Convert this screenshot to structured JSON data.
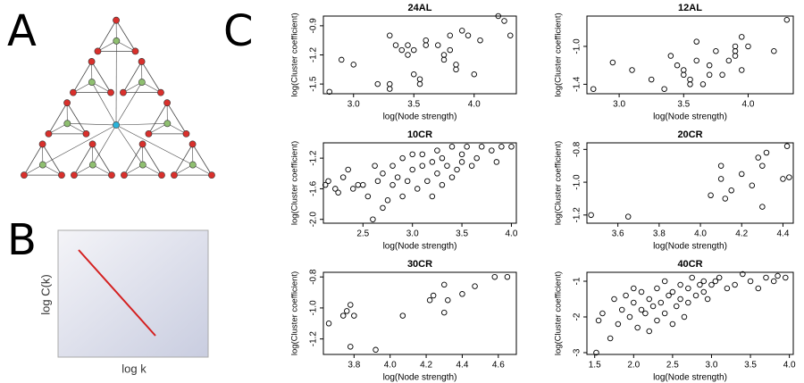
{
  "labels": [
    "A",
    "B",
    "C"
  ],
  "panel_b": {
    "xlabel": "log k",
    "ylabel": "log C(k)"
  },
  "chart_data": [
    {
      "type": "scatter",
      "title": "24AL",
      "xlabel": "log(Node strength)",
      "ylabel": "log(Cluster coefficient)",
      "x": [
        2.8,
        2.9,
        3.0,
        3.2,
        3.3,
        3.3,
        3.3,
        3.35,
        3.4,
        3.45,
        3.45,
        3.5,
        3.5,
        3.55,
        3.55,
        3.6,
        3.6,
        3.7,
        3.75,
        3.75,
        3.8,
        3.8,
        3.85,
        3.85,
        3.9,
        3.95,
        4.0,
        4.05,
        4.2,
        4.25,
        4.3
      ],
      "values": [
        -1.58,
        -1.25,
        -1.3,
        -1.5,
        -1.55,
        -1.5,
        -1.0,
        -1.1,
        -1.15,
        -1.2,
        -1.1,
        -1.15,
        -1.4,
        -1.45,
        -1.5,
        -1.05,
        -1.1,
        -1.1,
        -1.2,
        -1.25,
        -1.15,
        -1.0,
        -1.3,
        -1.35,
        -0.95,
        -1.0,
        -1.4,
        -1.05,
        -0.8,
        -0.85,
        -1.0
      ],
      "xlim": [
        2.75,
        4.35
      ],
      "ylim": [
        -1.6,
        -0.8
      ],
      "xticks": [
        {
          "value": 3,
          "label": "3.0"
        },
        3.5,
        {
          "value": 4,
          "label": "4.0"
        }
      ],
      "yticks": [
        -1.5,
        -1.2,
        -0.9
      ]
    },
    {
      "type": "scatter",
      "title": "12AL",
      "xlabel": "log(Node strength)",
      "ylabel": "log(Cluster coefficient)",
      "x": [
        2.8,
        2.95,
        3.1,
        3.25,
        3.35,
        3.4,
        3.45,
        3.5,
        3.5,
        3.55,
        3.55,
        3.6,
        3.6,
        3.65,
        3.7,
        3.7,
        3.75,
        3.8,
        3.85,
        3.9,
        3.9,
        3.9,
        3.95,
        3.95,
        4.0,
        4.2,
        4.3
      ],
      "values": [
        -1.45,
        -1.17,
        -1.25,
        -1.35,
        -1.45,
        -1.1,
        -1.2,
        -1.25,
        -1.3,
        -1.35,
        -1.4,
        -0.95,
        -1.15,
        -1.4,
        -1.2,
        -1.3,
        -1.05,
        -1.3,
        -1.15,
        -1.05,
        -1.0,
        -1.1,
        -0.9,
        -1.25,
        -1.0,
        -1.05,
        -0.72
      ],
      "xlim": [
        2.75,
        4.35
      ],
      "ylim": [
        -1.5,
        -0.68
      ],
      "xticks": [
        {
          "value": 3,
          "label": "3.0"
        },
        3.5,
        {
          "value": 4,
          "label": "4.0"
        }
      ],
      "yticks": [
        -1.4,
        {
          "value": -1,
          "label": "-1.0"
        }
      ]
    },
    {
      "type": "scatter",
      "title": "10CR",
      "xlabel": "log(Node strength)",
      "ylabel": "log(Cluster coefficient)",
      "x": [
        2.12,
        2.15,
        2.22,
        2.25,
        2.3,
        2.35,
        2.4,
        2.45,
        2.5,
        2.55,
        2.6,
        2.62,
        2.65,
        2.7,
        2.7,
        2.75,
        2.8,
        2.8,
        2.85,
        2.9,
        2.9,
        2.95,
        3.0,
        3.0,
        3.05,
        3.1,
        3.1,
        3.15,
        3.2,
        3.2,
        3.25,
        3.25,
        3.3,
        3.3,
        3.35,
        3.4,
        3.4,
        3.45,
        3.5,
        3.5,
        3.55,
        3.6,
        3.65,
        3.7,
        3.8,
        3.85,
        3.9,
        4.0
      ],
      "values": [
        -1.55,
        -1.5,
        -1.6,
        -1.65,
        -1.45,
        -1.35,
        -1.6,
        -1.55,
        -1.55,
        -1.7,
        -2.0,
        -1.3,
        -1.5,
        -1.4,
        -1.85,
        -1.75,
        -1.55,
        -1.3,
        -1.45,
        -1.7,
        -1.2,
        -1.5,
        -1.15,
        -1.35,
        -1.6,
        -1.3,
        -1.15,
        -1.5,
        -1.25,
        -1.7,
        -1.1,
        -1.4,
        -1.2,
        -1.55,
        -1.3,
        -1.05,
        -1.45,
        -1.35,
        -1.15,
        -1.25,
        -1.05,
        -1.3,
        -1.2,
        -1.05,
        -1.1,
        -1.25,
        -1.05,
        -1.05
      ],
      "xlim": [
        2.1,
        4.05
      ],
      "ylim": [
        -2.05,
        -1.0
      ],
      "xticks": [
        2.5,
        {
          "value": 3,
          "label": "3.0"
        },
        3.5,
        {
          "value": 4,
          "label": "4.0"
        }
      ],
      "yticks": [
        {
          "value": -2,
          "label": "-2.0"
        },
        -1.6,
        -1.2
      ]
    },
    {
      "type": "scatter",
      "title": "20CR",
      "xlabel": "log(Node strength)",
      "ylabel": "log(Cluster coefficient)",
      "x": [
        3.47,
        3.65,
        4.05,
        4.1,
        4.1,
        4.12,
        4.15,
        4.2,
        4.25,
        4.28,
        4.3,
        4.3,
        4.32,
        4.4,
        4.42,
        4.43
      ],
      "values": [
        -1.2,
        -1.21,
        -1.08,
        -0.9,
        -0.98,
        -1.1,
        -1.05,
        -0.95,
        -1.02,
        -0.85,
        -0.9,
        -1.15,
        -0.82,
        -0.98,
        -0.78,
        -0.97
      ],
      "xlim": [
        3.45,
        4.45
      ],
      "ylim": [
        -1.25,
        -0.76
      ],
      "xticks": [
        3.6,
        3.8,
        {
          "value": 4,
          "label": "4.0"
        },
        4.2,
        4.4
      ],
      "yticks": [
        -1.2,
        {
          "value": -1,
          "label": "-1.0"
        },
        -0.8
      ]
    },
    {
      "type": "scatter",
      "title": "30CR",
      "xlabel": "log(Node strength)",
      "ylabel": "log(Cluster coefficient)",
      "x": [
        3.66,
        3.74,
        3.76,
        3.78,
        3.8,
        3.78,
        3.92,
        4.07,
        4.22,
        4.24,
        4.3,
        4.3,
        4.32,
        4.4,
        4.47,
        4.58,
        4.65
      ],
      "values": [
        -1.1,
        -1.05,
        -1.02,
        -1.25,
        -1.05,
        -0.98,
        -1.27,
        -1.05,
        -0.95,
        -0.92,
        -0.85,
        -1.03,
        -0.95,
        -0.91,
        -0.86,
        -0.8,
        -0.8
      ],
      "xlim": [
        3.63,
        4.7
      ],
      "ylim": [
        -1.3,
        -0.77
      ],
      "xticks": [
        3.8,
        {
          "value": 4,
          "label": "4.0"
        },
        4.2,
        4.4,
        4.6
      ],
      "yticks": [
        -1.2,
        {
          "value": -1,
          "label": "-1.0"
        },
        -0.8
      ]
    },
    {
      "type": "scatter",
      "title": "40CR",
      "xlabel": "log(Node strength)",
      "ylabel": "log(Cluster coefficient)",
      "x": [
        1.52,
        1.55,
        1.6,
        1.7,
        1.75,
        1.8,
        1.85,
        1.9,
        1.95,
        2.0,
        2.0,
        2.05,
        2.1,
        2.1,
        2.15,
        2.2,
        2.2,
        2.25,
        2.3,
        2.3,
        2.35,
        2.4,
        2.4,
        2.45,
        2.5,
        2.5,
        2.55,
        2.6,
        2.6,
        2.65,
        2.7,
        2.7,
        2.75,
        2.8,
        2.85,
        2.9,
        2.9,
        2.95,
        3.0,
        3.05,
        3.1,
        3.2,
        3.3,
        3.4,
        3.5,
        3.6,
        3.7,
        3.8,
        3.85,
        3.95
      ],
      "values": [
        -3.0,
        -2.1,
        -1.9,
        -2.6,
        -1.5,
        -2.2,
        -1.8,
        -1.4,
        -2.0,
        -1.6,
        -1.2,
        -2.3,
        -1.8,
        -1.3,
        -1.9,
        -2.4,
        -1.5,
        -1.7,
        -2.1,
        -1.2,
        -1.6,
        -1.9,
        -1.0,
        -1.4,
        -2.2,
        -1.3,
        -1.7,
        -1.1,
        -1.5,
        -2.0,
        -1.2,
        -1.6,
        -0.9,
        -1.4,
        -1.1,
        -1.0,
        -1.3,
        -1.5,
        -1.1,
        -1.0,
        -0.9,
        -1.2,
        -1.1,
        -0.8,
        -1.0,
        -1.2,
        -0.9,
        -1.0,
        -0.85,
        -0.9
      ],
      "xlim": [
        1.4,
        4.05
      ],
      "ylim": [
        -3.05,
        -0.75
      ],
      "xticks": [
        1.5,
        {
          "value": 2,
          "label": "2.0"
        },
        2.5,
        {
          "value": 3,
          "label": "3.0"
        },
        3.5,
        {
          "value": 4,
          "label": "4.0"
        }
      ],
      "yticks": [
        -3,
        -2,
        -1
      ]
    }
  ]
}
